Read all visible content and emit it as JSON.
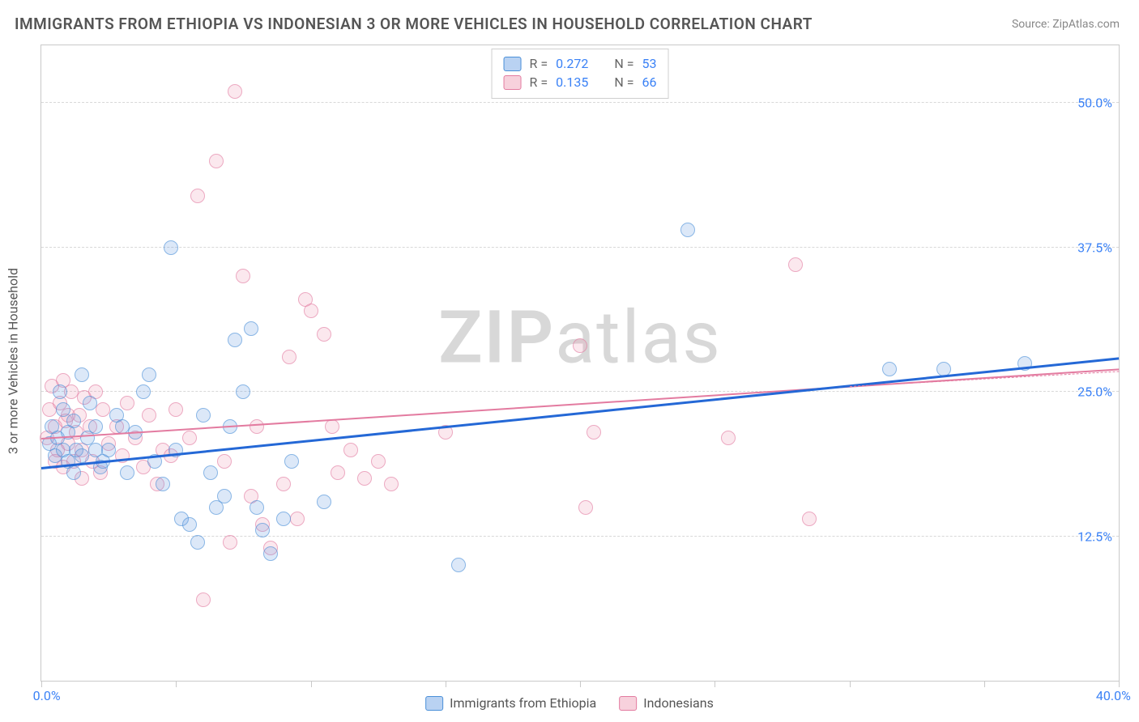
{
  "title": "IMMIGRANTS FROM ETHIOPIA VS INDONESIAN 3 OR MORE VEHICLES IN HOUSEHOLD CORRELATION CHART",
  "source": "Source: ZipAtlas.com",
  "watermark_bold": "ZIP",
  "watermark_rest": "atlas",
  "chart": {
    "type": "scatter",
    "ylabel": "3 or more Vehicles in Household",
    "xlim": [
      0,
      40
    ],
    "ylim": [
      0,
      55
    ],
    "y_ticks": [
      12.5,
      25.0,
      37.5,
      50.0
    ],
    "y_tick_labels": [
      "12.5%",
      "25.0%",
      "37.5%",
      "50.0%"
    ],
    "x_tick_labels": {
      "left": "0.0%",
      "right": "40.0%"
    },
    "x_minor_ticks": [
      0,
      5,
      10,
      15,
      20,
      25,
      30,
      35,
      40
    ],
    "background_color": "#ffffff",
    "grid_color": "#d8d8d8",
    "series": {
      "blue": {
        "label": "Immigrants from Ethiopia",
        "color_fill": "rgba(99,155,226,0.35)",
        "color_stroke": "#4a8fd8",
        "R": "0.272",
        "N": "53",
        "trend": {
          "x1": 0,
          "y1": 18.5,
          "x2": 40,
          "y2": 28,
          "color": "#2468d6",
          "width": 3
        },
        "points": [
          [
            0.3,
            20.5
          ],
          [
            0.4,
            22.0
          ],
          [
            0.5,
            19.5
          ],
          [
            0.6,
            21.0
          ],
          [
            0.7,
            25.0
          ],
          [
            0.8,
            23.5
          ],
          [
            0.8,
            20.0
          ],
          [
            1.0,
            21.5
          ],
          [
            1.0,
            19.0
          ],
          [
            1.2,
            18.0
          ],
          [
            1.2,
            22.5
          ],
          [
            1.3,
            20.0
          ],
          [
            1.5,
            26.5
          ],
          [
            1.5,
            19.5
          ],
          [
            1.7,
            21.0
          ],
          [
            1.8,
            24.0
          ],
          [
            2.0,
            20.0
          ],
          [
            2.0,
            22.0
          ],
          [
            2.2,
            18.5
          ],
          [
            2.3,
            19.0
          ],
          [
            2.5,
            20.0
          ],
          [
            2.8,
            23.0
          ],
          [
            3.0,
            22.0
          ],
          [
            3.2,
            18.0
          ],
          [
            3.5,
            21.5
          ],
          [
            3.8,
            25.0
          ],
          [
            4.0,
            26.5
          ],
          [
            4.2,
            19.0
          ],
          [
            4.5,
            17.0
          ],
          [
            4.8,
            37.5
          ],
          [
            5.0,
            20.0
          ],
          [
            5.2,
            14.0
          ],
          [
            5.5,
            13.5
          ],
          [
            5.8,
            12.0
          ],
          [
            6.0,
            23.0
          ],
          [
            6.3,
            18.0
          ],
          [
            6.5,
            15.0
          ],
          [
            6.8,
            16.0
          ],
          [
            7.0,
            22.0
          ],
          [
            7.2,
            29.5
          ],
          [
            7.5,
            25.0
          ],
          [
            7.8,
            30.5
          ],
          [
            8.0,
            15.0
          ],
          [
            8.2,
            13.0
          ],
          [
            8.5,
            11.0
          ],
          [
            9.0,
            14.0
          ],
          [
            9.3,
            19.0
          ],
          [
            10.5,
            15.5
          ],
          [
            15.5,
            10.0
          ],
          [
            24.0,
            39.0
          ],
          [
            31.5,
            27.0
          ],
          [
            33.5,
            27.0
          ],
          [
            36.5,
            27.5
          ]
        ]
      },
      "pink": {
        "label": "Indonesians",
        "color_fill": "rgba(236,140,168,0.30)",
        "color_stroke": "#e37ba0",
        "R": "0.135",
        "N": "66",
        "trend": {
          "x1": 0,
          "y1": 21.0,
          "x2": 40,
          "y2": 27.0,
          "color": "#e37ba0",
          "width": 2.5
        },
        "trend_dash": {
          "x1": 30,
          "y1": 25.5,
          "x2": 40,
          "y2": 26.8
        },
        "points": [
          [
            0.2,
            21.0
          ],
          [
            0.3,
            23.5
          ],
          [
            0.4,
            25.5
          ],
          [
            0.5,
            19.0
          ],
          [
            0.5,
            22.0
          ],
          [
            0.6,
            20.0
          ],
          [
            0.7,
            24.0
          ],
          [
            0.8,
            26.0
          ],
          [
            0.8,
            18.5
          ],
          [
            0.9,
            22.5
          ],
          [
            1.0,
            20.5
          ],
          [
            1.0,
            23.0
          ],
          [
            1.1,
            25.0
          ],
          [
            1.2,
            19.0
          ],
          [
            1.3,
            21.5
          ],
          [
            1.4,
            23.0
          ],
          [
            1.5,
            17.5
          ],
          [
            1.5,
            20.0
          ],
          [
            1.6,
            24.5
          ],
          [
            1.8,
            22.0
          ],
          [
            1.9,
            19.0
          ],
          [
            2.0,
            25.0
          ],
          [
            2.2,
            18.0
          ],
          [
            2.3,
            23.5
          ],
          [
            2.5,
            20.5
          ],
          [
            2.8,
            22.0
          ],
          [
            3.0,
            19.5
          ],
          [
            3.2,
            24.0
          ],
          [
            3.5,
            21.0
          ],
          [
            3.8,
            18.5
          ],
          [
            4.0,
            23.0
          ],
          [
            4.3,
            17.0
          ],
          [
            4.5,
            20.0
          ],
          [
            4.8,
            19.5
          ],
          [
            5.0,
            23.5
          ],
          [
            5.5,
            21.0
          ],
          [
            5.8,
            42.0
          ],
          [
            6.0,
            7.0
          ],
          [
            6.5,
            45.0
          ],
          [
            6.8,
            19.0
          ],
          [
            7.0,
            12.0
          ],
          [
            7.2,
            51.0
          ],
          [
            7.5,
            35.0
          ],
          [
            7.8,
            16.0
          ],
          [
            8.0,
            22.0
          ],
          [
            8.2,
            13.5
          ],
          [
            8.5,
            11.5
          ],
          [
            9.0,
            17.0
          ],
          [
            9.2,
            28.0
          ],
          [
            9.5,
            14.0
          ],
          [
            9.8,
            33.0
          ],
          [
            10.0,
            32.0
          ],
          [
            10.5,
            30.0
          ],
          [
            10.8,
            22.0
          ],
          [
            11.0,
            18.0
          ],
          [
            11.5,
            20.0
          ],
          [
            12.0,
            17.5
          ],
          [
            12.5,
            19.0
          ],
          [
            13.0,
            17.0
          ],
          [
            15.0,
            21.5
          ],
          [
            20.0,
            29.0
          ],
          [
            20.5,
            21.5
          ],
          [
            25.5,
            21.0
          ],
          [
            28.0,
            36.0
          ],
          [
            28.5,
            14.0
          ],
          [
            20.2,
            15.0
          ]
        ]
      }
    },
    "legend_top": [
      {
        "swatch": "blue",
        "R_label": "R =",
        "R_val": "0.272",
        "N_label": "N =",
        "N_val": "53"
      },
      {
        "swatch": "pink",
        "R_label": "R =",
        "R_val": "0.135",
        "N_label": "N =",
        "N_val": "66"
      }
    ],
    "legend_bottom": [
      {
        "swatch": "blue",
        "label": "Immigrants from Ethiopia"
      },
      {
        "swatch": "pink",
        "label": "Indonesians"
      }
    ]
  }
}
